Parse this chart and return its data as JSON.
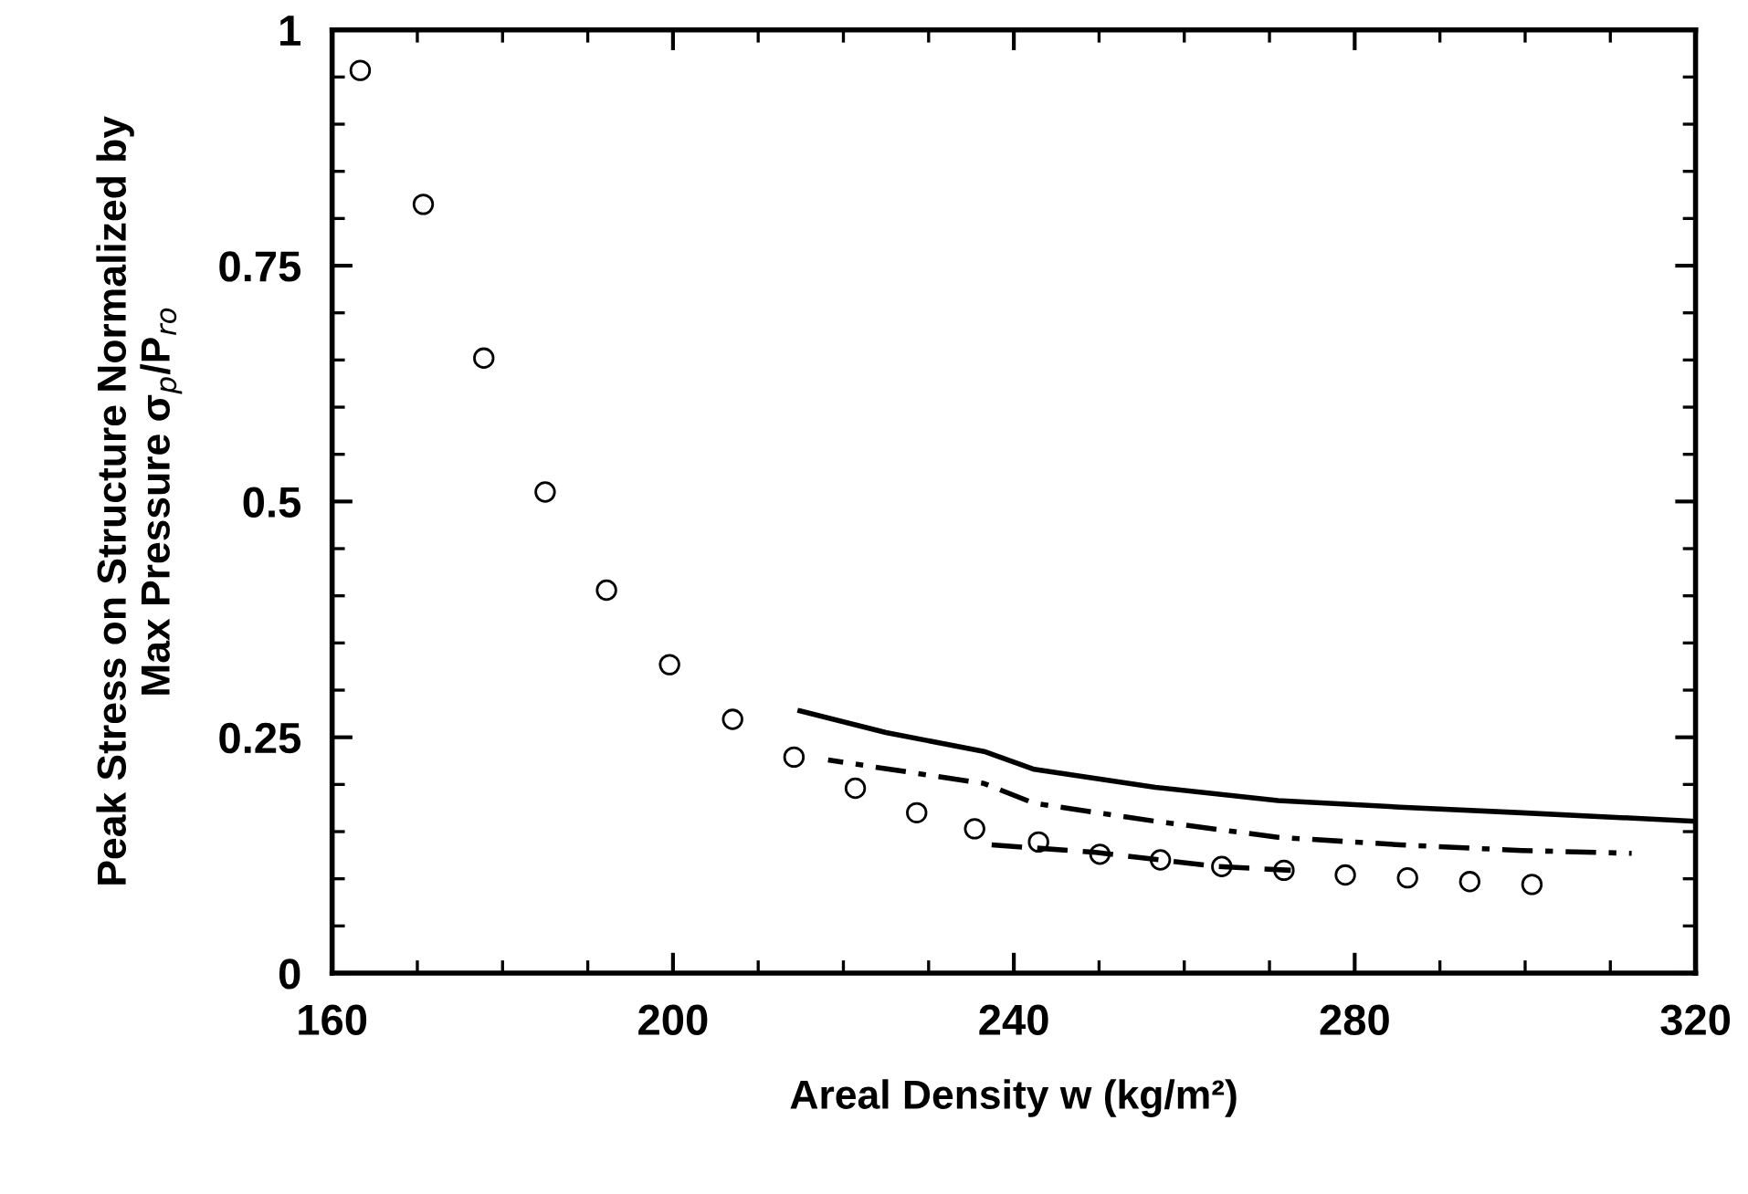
{
  "chart_data": {
    "type": "scatter",
    "xlabel": "Areal Density w (kg/m²)",
    "ylabel": "Peak Stress on Structure Normalized by\nMax Pressure σ$_{p}$/P$_{ro}$",
    "xlim": [
      160,
      320
    ],
    "ylim": [
      0,
      1
    ],
    "xticks": [
      160,
      200,
      240,
      280,
      320
    ],
    "yticks": [
      0,
      0.25,
      0.5,
      0.75,
      1
    ],
    "grid": false,
    "legend": false,
    "series": [
      {
        "marker": "circle",
        "color": "#000000",
        "x": [
          163.3,
          170.7,
          177.8,
          185.0,
          192.2,
          199.6,
          207.0,
          214.2,
          221.4,
          228.6,
          235.4,
          242.9,
          250.1,
          257.2,
          264.4,
          271.7,
          278.9,
          286.2,
          293.5,
          300.8
        ],
        "values": [
          0.957,
          0.815,
          0.652,
          0.51,
          0.406,
          0.327,
          0.269,
          0.229,
          0.196,
          0.17,
          0.153,
          0.139,
          0.126,
          0.12,
          0.113,
          0.109,
          0.104,
          0.101,
          0.097,
          0.094
        ]
      },
      {
        "type": "line",
        "line_style": "solid",
        "color": "#000000",
        "x": [
          214.9,
          225,
          236.5,
          242.4,
          256.6,
          271,
          285.3,
          299.6,
          320
        ],
        "values": [
          0.278,
          0.255,
          0.235,
          0.216,
          0.197,
          0.183,
          0.176,
          0.17,
          0.161
        ]
      },
      {
        "type": "line",
        "line_style": "dashdot",
        "color": "#000000",
        "x": [
          218.2,
          236.5,
          242.4,
          256.6,
          271,
          285.3,
          299.6,
          312.5
        ],
        "values": [
          0.226,
          0.201,
          0.18,
          0.161,
          0.144,
          0.136,
          0.13,
          0.127
        ]
      },
      {
        "type": "line",
        "line_style": "dashed",
        "color": "#000000",
        "x": [
          237.4,
          249.6,
          263.9,
          272.5
        ],
        "values": [
          0.136,
          0.128,
          0.113,
          0.109
        ]
      }
    ]
  }
}
